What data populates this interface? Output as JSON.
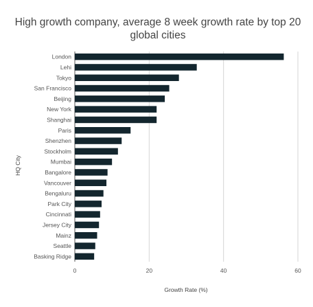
{
  "chart_data": {
    "type": "bar",
    "orientation": "horizontal",
    "title_lines": [
      "High growth company, average 8 week growth rate by top 20",
      "global cities"
    ],
    "xlabel": "Growth Rate (%)",
    "ylabel": "HQ City",
    "xlim": [
      0,
      60
    ],
    "xticks": [
      0,
      20,
      40,
      60
    ],
    "grid": true,
    "bar_color": "#13262e",
    "categories": [
      "London",
      "Lehi",
      "Tokyo",
      "San Francisco",
      "Beijing",
      "New York",
      "Shanghai",
      "Paris",
      "Shenzhen",
      "Stockholm",
      "Mumbai",
      "Bangalore",
      "Vancouver",
      "Bengaluru",
      "Park City",
      "Cincinnati",
      "Jersey City",
      "Mainz",
      "Seattle",
      "Basking Ridge"
    ],
    "values": [
      56.2,
      32.8,
      28.0,
      25.4,
      24.2,
      22.0,
      22.0,
      15.0,
      12.6,
      11.6,
      10.0,
      8.8,
      8.5,
      7.7,
      7.2,
      6.8,
      6.5,
      6.0,
      5.5,
      5.2
    ]
  }
}
